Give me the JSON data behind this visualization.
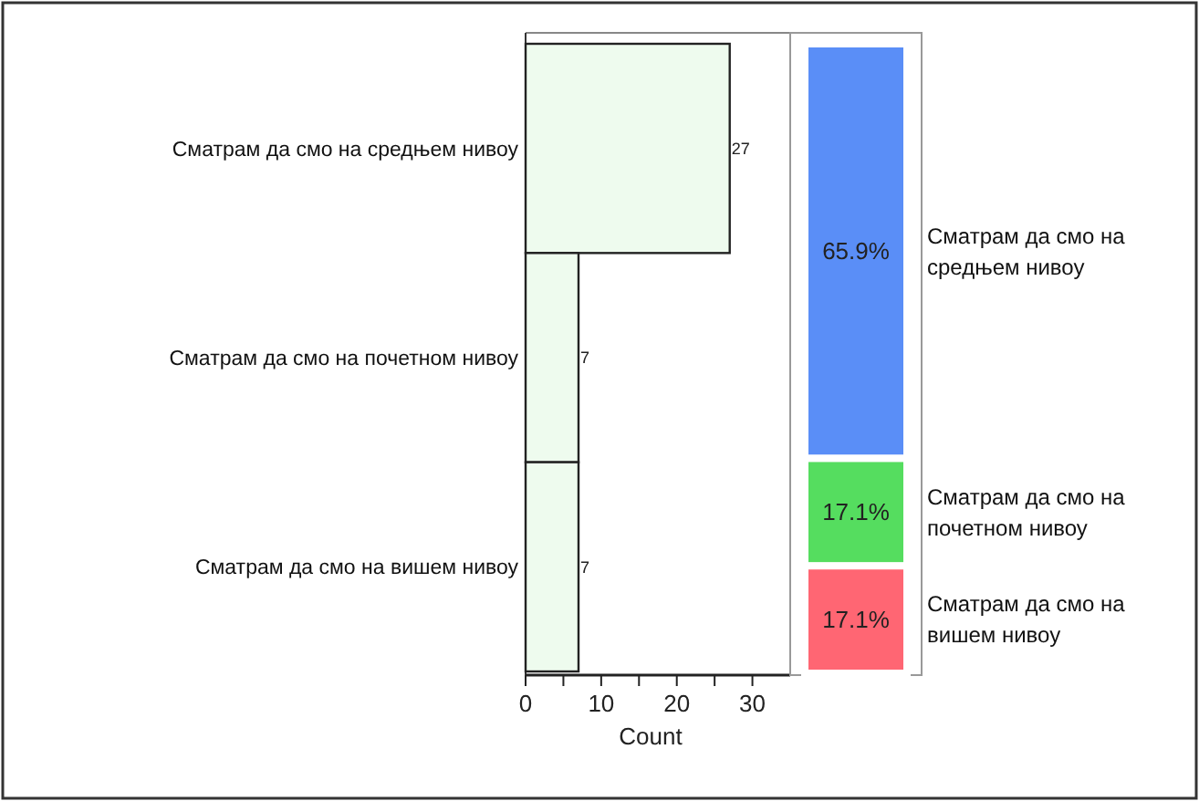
{
  "chart_data": [
    {
      "type": "bar",
      "orientation": "horizontal",
      "categories": [
        "Сматрам да смо на средњем нивоу",
        "Сматрам да смо на почетном нивоу",
        "Сматрам да смо на вишем нивоу"
      ],
      "values": [
        27,
        7,
        7
      ],
      "color": "#eefbee",
      "xlim": [
        0,
        35
      ],
      "xticks": [
        0,
        {
          "value": 5,
          "label": null
        },
        10,
        {
          "value": 15,
          "label": null
        },
        20,
        {
          "value": 25,
          "label": null
        },
        30
      ],
      "xlabel": "Count",
      "data_labels": true
    },
    {
      "type": "bar",
      "stacked": true,
      "categories": [
        null
      ],
      "tick_labels": false,
      "series": [
        {
          "name": "Сматрам да смо на вишем нивоу",
          "color": "#ff6673",
          "values": [
            17.1
          ],
          "value_labels": [
            "17.1%"
          ]
        },
        {
          "name": "Сматрам да смо на почетном нивоу",
          "color": "#55dd5f",
          "values": [
            17.1
          ],
          "value_labels": [
            "17.1%"
          ]
        },
        {
          "name": "Сматрам да смо на средњем нивоу",
          "color": "#5a8ef7",
          "values": [
            65.9
          ],
          "value_labels": [
            "65.9%"
          ]
        }
      ]
    }
  ]
}
